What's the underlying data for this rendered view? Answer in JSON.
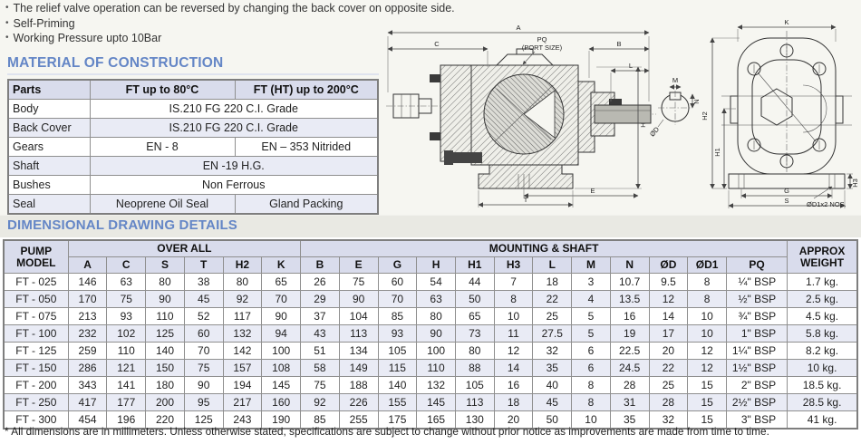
{
  "bullets": [
    "The relief valve operation can be reversed by changing the back cover on opposite side.",
    "Self-Priming",
    "Working Pressure upto 10Bar"
  ],
  "material_section": {
    "title": "MATERIAL OF CONSTRUCTION",
    "table": {
      "headers": [
        "Parts",
        "FT up to 80°C",
        "FT (HT) up to 200°C"
      ],
      "rows": [
        {
          "part": "Body",
          "cells": [
            {
              "text": "IS.210 FG 220 C.I. Grade",
              "span": 2
            }
          ]
        },
        {
          "part": "Back Cover",
          "cells": [
            {
              "text": "IS.210 FG 220 C.I. Grade",
              "span": 2
            }
          ]
        },
        {
          "part": "Gears",
          "cells": [
            {
              "text": "EN - 8",
              "span": 1
            },
            {
              "text": "EN – 353 Nitrided",
              "span": 1
            }
          ]
        },
        {
          "part": "Shaft",
          "cells": [
            {
              "text": "EN -19 H.G.",
              "span": 2
            }
          ]
        },
        {
          "part": "Bushes",
          "cells": [
            {
              "text": "Non Ferrous",
              "span": 2
            }
          ]
        },
        {
          "part": "Seal",
          "cells": [
            {
              "text": "Neoprene Oil Seal",
              "span": 1
            },
            {
              "text": "Gland Packing",
              "span": 1
            }
          ]
        }
      ]
    }
  },
  "dimensional_section": {
    "title": "DIMENSIONAL DRAWING DETAILS",
    "table": {
      "group_headers": {
        "pump_model": "PUMP MODEL",
        "overall": "OVER ALL",
        "mounting": "MOUNTING & SHAFT",
        "weight": "APPROX WEIGHT"
      },
      "columns": [
        "A",
        "C",
        "S",
        "T",
        "H2",
        "K",
        "B",
        "E",
        "G",
        "H",
        "H1",
        "H3",
        "L",
        "M",
        "N",
        "ØD",
        "ØD1",
        "PQ"
      ],
      "rows": [
        {
          "model": "FT - 025",
          "values": [
            "146",
            "63",
            "80",
            "38",
            "80",
            "65",
            "26",
            "75",
            "60",
            "54",
            "44",
            "7",
            "18",
            "3",
            "10.7",
            "9.5",
            "8",
            "¼\" BSP"
          ],
          "weight": "1.7 kg."
        },
        {
          "model": "FT - 050",
          "values": [
            "170",
            "75",
            "90",
            "45",
            "92",
            "70",
            "29",
            "90",
            "70",
            "63",
            "50",
            "8",
            "22",
            "4",
            "13.5",
            "12",
            "8",
            "½\" BSP"
          ],
          "weight": "2.5 kg."
        },
        {
          "model": "FT - 075",
          "values": [
            "213",
            "93",
            "110",
            "52",
            "117",
            "90",
            "37",
            "104",
            "85",
            "80",
            "65",
            "10",
            "25",
            "5",
            "16",
            "14",
            "10",
            "¾\" BSP"
          ],
          "weight": "4.5 kg."
        },
        {
          "model": "FT - 100",
          "values": [
            "232",
            "102",
            "125",
            "60",
            "132",
            "94",
            "43",
            "113",
            "93",
            "90",
            "73",
            "11",
            "27.5",
            "5",
            "19",
            "17",
            "10",
            "1\" BSP"
          ],
          "weight": "5.8 kg."
        },
        {
          "model": "FT - 125",
          "values": [
            "259",
            "110",
            "140",
            "70",
            "142",
            "100",
            "51",
            "134",
            "105",
            "100",
            "80",
            "12",
            "32",
            "6",
            "22.5",
            "20",
            "12",
            "1¼\" BSP"
          ],
          "weight": "8.2 kg."
        },
        {
          "model": "FT - 150",
          "values": [
            "286",
            "121",
            "150",
            "75",
            "157",
            "108",
            "58",
            "149",
            "115",
            "110",
            "88",
            "14",
            "35",
            "6",
            "24.5",
            "22",
            "12",
            "1½\" BSP"
          ],
          "weight": "10 kg."
        },
        {
          "model": "FT - 200",
          "values": [
            "343",
            "141",
            "180",
            "90",
            "194",
            "145",
            "75",
            "188",
            "140",
            "132",
            "105",
            "16",
            "40",
            "8",
            "28",
            "25",
            "15",
            "2\" BSP"
          ],
          "weight": "18.5 kg."
        },
        {
          "model": "FT - 250",
          "values": [
            "417",
            "177",
            "200",
            "95",
            "217",
            "160",
            "92",
            "226",
            "155",
            "145",
            "113",
            "18",
            "45",
            "8",
            "31",
            "28",
            "15",
            "2½\" BSP"
          ],
          "weight": "28.5 kg."
        },
        {
          "model": "FT - 300",
          "values": [
            "454",
            "196",
            "220",
            "125",
            "243",
            "190",
            "85",
            "255",
            "175",
            "165",
            "130",
            "20",
            "50",
            "10",
            "35",
            "32",
            "15",
            "3\" BSP"
          ],
          "weight": "41 kg."
        }
      ]
    }
  },
  "drawings": {
    "side_view": {
      "labels": {
        "a": "A",
        "c": "C",
        "b": "B",
        "pq": "PQ",
        "port_size": "(PORT SIZE)",
        "l": "L",
        "h": "H",
        "e": "E",
        "t": "T"
      }
    },
    "shaft_detail": {
      "labels": {
        "m": "M",
        "n": "N",
        "od": "ØD"
      }
    },
    "front_view": {
      "labels": {
        "k": "K",
        "h2": "H2",
        "h1": "H1",
        "g": "G",
        "s": "S",
        "h3": "H3",
        "od1": "ØD1x2  NOS."
      }
    }
  },
  "footnote": "* All dimensions are in millimeters. Unless otherwise stated, specifications are subject to change without prior notice as improvements are made from time to time.",
  "colors": {
    "accent_blue": "#6486c6",
    "header_bg": "#d9dcec",
    "alt_row_bg": "#e9ebf5",
    "band_bg": "#e9e9e3"
  }
}
